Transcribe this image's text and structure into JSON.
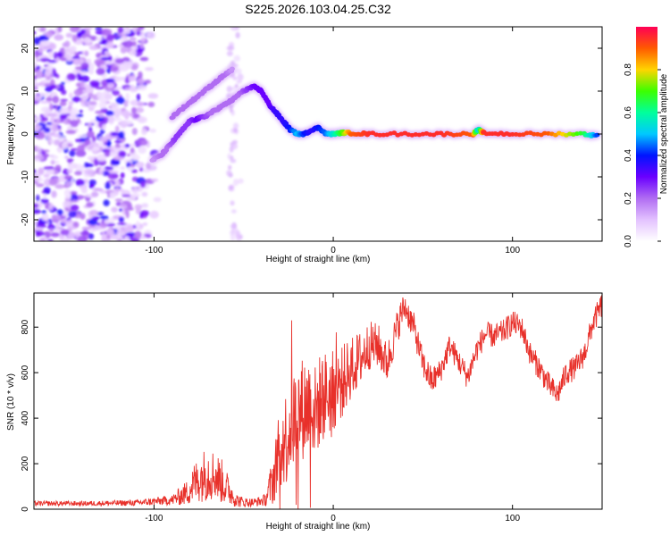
{
  "figure_title": "S225.2026.103.04.25.C32",
  "chart_data": [
    {
      "type": "heatmap",
      "xlabel": "Height of straight line (km)",
      "ylabel": "Frequency (Hz)",
      "xlim": [
        -167,
        150
      ],
      "ylim": [
        -25,
        25
      ],
      "xticks": [
        -100,
        0,
        100
      ],
      "yticks": [
        -20,
        -10,
        0,
        10,
        20
      ],
      "colorbar": {
        "label": "Normalized spectral amplitude",
        "range": [
          0,
          1
        ],
        "ticks": [
          0.0,
          0.2,
          0.4,
          0.6,
          0.8
        ],
        "colors": [
          "#ffffff",
          "#e3c2ff",
          "#b06cf2",
          "#6a00ff",
          "#0014ff",
          "#00c8ff",
          "#00ff9c",
          "#3cff00",
          "#ffd400",
          "#ff5a00",
          "#ff0055"
        ]
      },
      "noise_region_x": [
        -167,
        -97
      ],
      "track": {
        "x": [
          -101,
          -96,
          -92,
          -88,
          -84,
          -80,
          -76,
          -72,
          -68,
          -64,
          -60,
          -56,
          -52,
          -48,
          -44,
          -40,
          -36,
          -32,
          -28,
          -24,
          -20,
          -16,
          -12,
          -8,
          -4,
          0,
          5,
          10,
          20,
          40,
          60,
          78,
          81,
          84,
          100,
          120,
          140,
          148
        ],
        "y": [
          -6,
          -5,
          -3,
          -1,
          1,
          3,
          3.5,
          4,
          5,
          6,
          7,
          8,
          9.5,
          10.5,
          11,
          10,
          7,
          5,
          3,
          1,
          0,
          0,
          1,
          1.5,
          0,
          0,
          0.3,
          0.2,
          0,
          0,
          0,
          0,
          1,
          0.2,
          0,
          0,
          0,
          -0.5
        ],
        "amp": [
          0.15,
          0.2,
          0.2,
          0.25,
          0.25,
          0.25,
          0.3,
          0.25,
          0.2,
          0.2,
          0.2,
          0.2,
          0.2,
          0.25,
          0.3,
          0.3,
          0.3,
          0.35,
          0.35,
          0.4,
          0.5,
          0.4,
          0.35,
          0.4,
          0.45,
          0.55,
          0.7,
          0.9,
          0.95,
          0.95,
          0.95,
          0.9,
          0.5,
          0.95,
          0.95,
          0.9,
          0.65,
          0.4
        ]
      },
      "upper_track": {
        "x": [
          -90,
          -84,
          -78,
          -72,
          -66,
          -60,
          -56
        ],
        "y": [
          4,
          6,
          8,
          10,
          12,
          14,
          15
        ],
        "amp": [
          0.2,
          0.2,
          0.2,
          0.2,
          0.2,
          0.2,
          0.15
        ]
      }
    },
    {
      "type": "line",
      "xlabel": "Height of straight line (km)",
      "ylabel": "SNR (10 * v/v)",
      "xlim": [
        -167,
        150
      ],
      "ylim": [
        0,
        950
      ],
      "xticks": [
        -100,
        0,
        100
      ],
      "yticks": [
        0,
        200,
        400,
        600,
        800
      ],
      "line_color": "#e8302a",
      "series": [
        {
          "name": "SNR",
          "x": [
            -167,
            -140,
            -110,
            -90,
            -82,
            -78,
            -74,
            -70,
            -66,
            -62,
            -58,
            -54,
            -50,
            -44,
            -38,
            -34,
            -30,
            -28,
            -26,
            -24,
            -22,
            -20,
            -18,
            -16,
            -14,
            -12,
            -10,
            -8,
            -5,
            0,
            5,
            10,
            15,
            20,
            25,
            30,
            35,
            38,
            40,
            45,
            50,
            55,
            60,
            65,
            70,
            75,
            80,
            85,
            90,
            95,
            100,
            105,
            110,
            115,
            120,
            125,
            130,
            135,
            140,
            145,
            150
          ],
          "y": [
            25,
            25,
            28,
            40,
            70,
            110,
            140,
            160,
            150,
            120,
            80,
            40,
            30,
            30,
            40,
            120,
            250,
            300,
            320,
            360,
            400,
            430,
            440,
            450,
            460,
            470,
            420,
            470,
            500,
            520,
            560,
            620,
            660,
            720,
            720,
            640,
            780,
            860,
            890,
            800,
            640,
            560,
            610,
            720,
            650,
            580,
            700,
            770,
            760,
            780,
            820,
            800,
            680,
            620,
            550,
            500,
            600,
            620,
            680,
            820,
            900
          ],
          "noise": [
            12,
            12,
            15,
            25,
            60,
            100,
            120,
            140,
            120,
            110,
            70,
            35,
            25,
            20,
            30,
            120,
            200,
            220,
            240,
            240,
            240,
            250,
            250,
            260,
            250,
            250,
            240,
            230,
            220,
            200,
            180,
            150,
            140,
            120,
            110,
            100,
            90,
            80,
            70,
            70,
            70,
            70,
            60,
            60,
            60,
            60,
            60,
            60,
            60,
            60,
            60,
            60,
            60,
            60,
            60,
            60,
            60,
            60,
            60,
            60,
            60
          ]
        }
      ]
    }
  ]
}
